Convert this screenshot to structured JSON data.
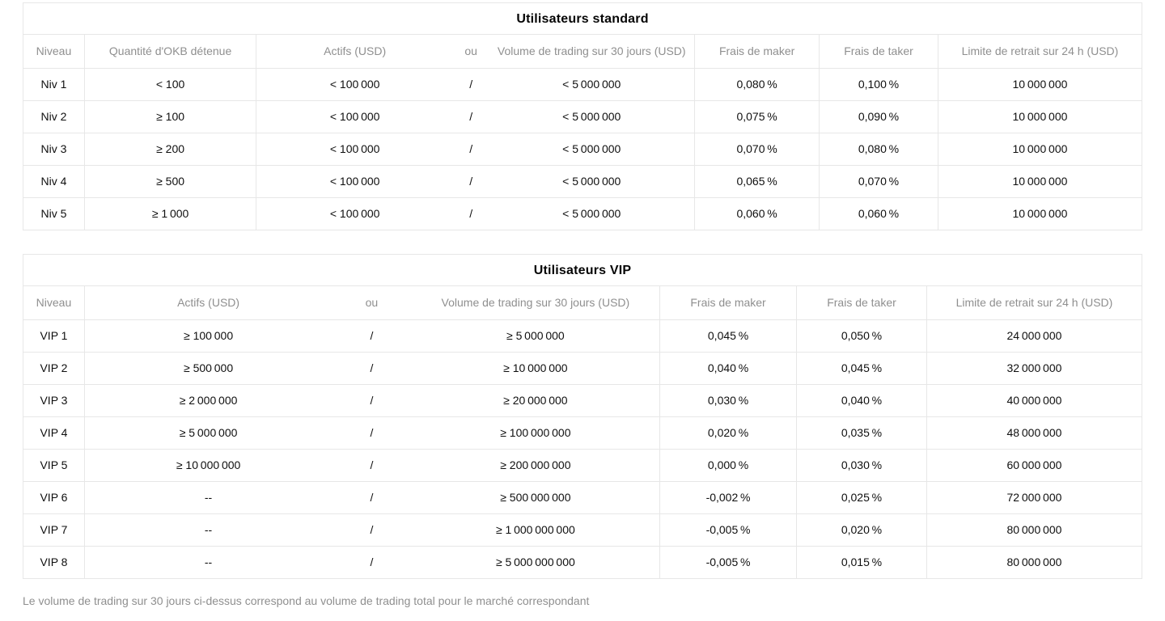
{
  "tables": [
    {
      "title": "Utilisateurs standard",
      "columns": [
        {
          "key": "niveau",
          "label": "Niveau"
        },
        {
          "key": "okb",
          "label": "Quantité d'OKB détenue"
        },
        {
          "key": "actifs",
          "label": "Actifs (USD)"
        },
        {
          "key": "ou",
          "label": "ou"
        },
        {
          "key": "volume",
          "label": "Volume de trading sur 30 jours (USD)"
        },
        {
          "key": "maker",
          "label": "Frais de maker"
        },
        {
          "key": "taker",
          "label": "Frais de taker"
        },
        {
          "key": "limite",
          "label": "Limite de retrait sur 24 h (USD)"
        }
      ],
      "rows": [
        {
          "cells": [
            "Niv 1",
            "< 100",
            "< 100 000",
            "/",
            "< 5 000 000",
            "0,080 %",
            "0,100 %",
            "10 000 000"
          ]
        },
        {
          "cells": [
            "Niv 2",
            "≥ 100",
            "< 100 000",
            "/",
            "< 5 000 000",
            "0,075 %",
            "0,090 %",
            "10 000 000"
          ]
        },
        {
          "cells": [
            "Niv 3",
            "≥ 200",
            "< 100 000",
            "/",
            "< 5 000 000",
            "0,070 %",
            "0,080 %",
            "10 000 000"
          ]
        },
        {
          "cells": [
            "Niv 4",
            "≥ 500",
            "< 100 000",
            "/",
            "< 5 000 000",
            "0,065 %",
            "0,070 %",
            "10 000 000"
          ]
        },
        {
          "cells": [
            "Niv 5",
            "≥ 1 000",
            "< 100 000",
            "/",
            "< 5 000 000",
            "0,060 %",
            "0,060 %",
            "10 000 000"
          ]
        }
      ]
    },
    {
      "title": "Utilisateurs VIP",
      "columns": [
        {
          "key": "niveau",
          "label": "Niveau"
        },
        {
          "key": "actifs",
          "label": "Actifs (USD)"
        },
        {
          "key": "ou",
          "label": "ou"
        },
        {
          "key": "volume",
          "label": "Volume de trading sur 30 jours (USD)"
        },
        {
          "key": "maker",
          "label": "Frais de maker"
        },
        {
          "key": "taker",
          "label": "Frais de taker"
        },
        {
          "key": "limite",
          "label": "Limite de retrait sur 24 h (USD)"
        }
      ],
      "rows": [
        {
          "cells": [
            "VIP 1",
            "≥ 100 000",
            "/",
            "≥ 5 000 000",
            "0,045 %",
            "0,050 %",
            "24 000 000"
          ]
        },
        {
          "cells": [
            "VIP 2",
            "≥ 500 000",
            "/",
            "≥ 10 000 000",
            "0,040 %",
            "0,045 %",
            "32 000 000"
          ]
        },
        {
          "cells": [
            "VIP 3",
            "≥ 2 000 000",
            "/",
            "≥ 20 000 000",
            "0,030 %",
            "0,040 %",
            "40 000 000"
          ]
        },
        {
          "cells": [
            "VIP 4",
            "≥ 5 000 000",
            "/",
            "≥ 100 000 000",
            "0,020 %",
            "0,035 %",
            "48 000 000"
          ]
        },
        {
          "cells": [
            "VIP 5",
            "≥ 10 000 000",
            "/",
            "≥ 200 000 000",
            "0,000 %",
            "0,030 %",
            "60 000 000"
          ]
        },
        {
          "cells": [
            "VIP 6",
            "--",
            "/",
            "≥ 500 000 000",
            "-0,002 %",
            "0,025 %",
            "72 000 000"
          ]
        },
        {
          "cells": [
            "VIP 7",
            "--",
            "/",
            "≥ 1 000 000 000",
            "-0,005 %",
            "0,020 %",
            "80 000 000"
          ]
        },
        {
          "cells": [
            "VIP 8",
            "--",
            "/",
            "≥ 5 000 000 000",
            "-0,005 %",
            "0,015 %",
            "80 000 000"
          ]
        }
      ]
    }
  ],
  "footnote": "Le volume de trading sur 30 jours ci-dessus correspond au volume de trading total pour le marché correspondant"
}
